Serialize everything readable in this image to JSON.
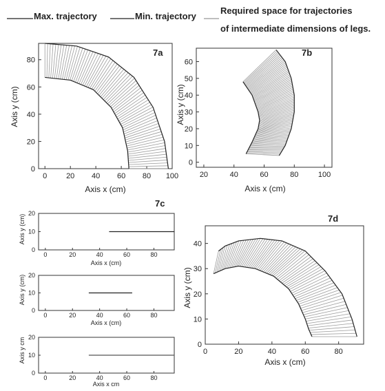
{
  "legend": {
    "items": [
      {
        "label": "Max. trajectory",
        "color": "#222222"
      },
      {
        "label": "Min. trajectory",
        "color": "#222222"
      },
      {
        "label": "Required space for trajectories",
        "color": "#a8a8a8"
      }
    ],
    "continuation": "of intermediate dimensions of legs."
  },
  "chart_data": [
    {
      "id": "7a",
      "type": "area",
      "panel_label": "7a",
      "xlabel": "Axis x (cm)",
      "ylabel": "Axis y (cm)",
      "xlim": [
        -5,
        100
      ],
      "ylim": [
        0,
        92
      ],
      "xticks": [
        0,
        20,
        40,
        60,
        80,
        100
      ],
      "yticks": [
        0,
        20,
        40,
        60,
        80
      ],
      "series": [
        {
          "role": "max",
          "x": [
            0,
            25,
            50,
            70,
            85,
            94,
            97
          ],
          "y": [
            92,
            90,
            82,
            67,
            45,
            20,
            0
          ]
        },
        {
          "role": "min",
          "x": [
            0,
            20,
            38,
            52,
            61,
            65,
            66
          ],
          "y": [
            67,
            65,
            58,
            45,
            30,
            13,
            0
          ]
        }
      ]
    },
    {
      "id": "7b",
      "type": "area",
      "panel_label": "7b",
      "xlabel": "Axis x (cm)",
      "ylabel": "Axis y (cm)",
      "xlim": [
        15,
        105
      ],
      "ylim": [
        -3,
        68
      ],
      "xticks": [
        20,
        40,
        60,
        80,
        100
      ],
      "yticks": [
        0,
        10,
        20,
        30,
        40,
        50,
        60
      ],
      "series": [
        {
          "role": "max",
          "x": [
            68,
            74,
            78,
            80,
            80,
            78,
            74,
            70
          ],
          "y": [
            67,
            60,
            50,
            40,
            30,
            20,
            10,
            4
          ]
        },
        {
          "role": "min",
          "x": [
            46,
            52,
            56,
            57,
            56,
            52,
            48
          ],
          "y": [
            48,
            40,
            30,
            25,
            20,
            12,
            5
          ]
        }
      ]
    },
    {
      "id": "7c-1",
      "type": "line",
      "panel_label": "7c",
      "xlabel": "Axis x (cm)",
      "ylabel": "Axis y (cm)",
      "xlim": [
        -5,
        95
      ],
      "ylim": [
        0,
        20
      ],
      "xticks": [
        0,
        20,
        40,
        60,
        80
      ],
      "yticks": [
        0,
        10,
        20
      ],
      "series": [
        {
          "role": "trajectory",
          "x": [
            47,
            95
          ],
          "y": [
            10,
            10
          ]
        }
      ]
    },
    {
      "id": "7c-2",
      "type": "line",
      "xlabel": "Axis x (cm)",
      "ylabel": "Axis y (cm)",
      "xlim": [
        -5,
        95
      ],
      "ylim": [
        0,
        20
      ],
      "xticks": [
        0,
        20,
        40,
        60,
        80
      ],
      "yticks": [
        0,
        10,
        20
      ],
      "series": [
        {
          "role": "trajectory",
          "x": [
            32,
            64
          ],
          "y": [
            10,
            10
          ]
        }
      ]
    },
    {
      "id": "7c-3",
      "type": "line",
      "xlabel": "Axis x cm",
      "ylabel": "Axis y cm",
      "xlim": [
        -5,
        95
      ],
      "ylim": [
        0,
        20
      ],
      "xticks": [
        0,
        20,
        40,
        60,
        80
      ],
      "yticks": [
        0,
        10,
        20
      ],
      "series": [
        {
          "role": "trajectory",
          "x": [
            32,
            95
          ],
          "y": [
            10,
            10
          ]
        }
      ]
    },
    {
      "id": "7d",
      "type": "area",
      "panel_label": "7d",
      "xlabel": "Axis x (cm)",
      "ylabel": "Axis y (cm)",
      "xlim": [
        0,
        95
      ],
      "ylim": [
        0,
        47
      ],
      "xticks": [
        0,
        20,
        40,
        60,
        80
      ],
      "yticks": [
        0,
        10,
        20,
        30,
        40
      ],
      "series": [
        {
          "role": "max",
          "x": [
            8,
            12,
            20,
            33,
            46,
            60,
            72,
            82,
            88,
            91
          ],
          "y": [
            37,
            39,
            41,
            42,
            41,
            37,
            29,
            20,
            10,
            3
          ]
        },
        {
          "role": "min",
          "x": [
            5,
            12,
            20,
            30,
            41,
            50,
            56,
            60,
            62,
            64
          ],
          "y": [
            28,
            30,
            31,
            30,
            27,
            22,
            16,
            10,
            6,
            3
          ]
        }
      ]
    }
  ]
}
